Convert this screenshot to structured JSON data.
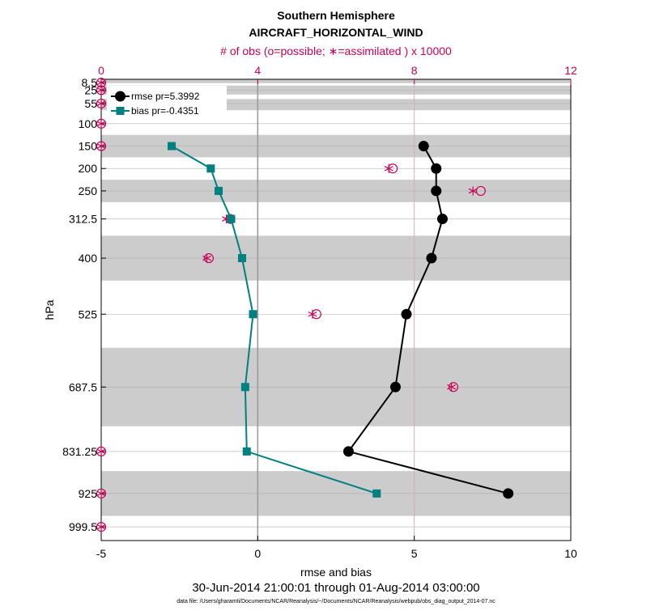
{
  "chart_data": {
    "type": "line",
    "title": "Southern Hemisphere",
    "subtitle": "AIRCRAFT_HORIZONTAL_WIND",
    "top_axis_label": "# of obs (o=possible; ∗=assimilated ) x 10000",
    "xlabel": "rmse and bias",
    "ylabel": "hPa",
    "date_range": "30-Jun-2014 21:00:01 through 01-Aug-2014 03:00:00",
    "data_file": "data file: /Users/gharamti/Documents/NCAR/Reanalysis/~/Documents/NCAR/Reanalysis/webpub/obs_diag_output_2014-07.nc",
    "xlim": [
      -5,
      10
    ],
    "x_ticks": [
      -5,
      0,
      5,
      10
    ],
    "top_xlim": [
      0,
      12
    ],
    "top_ticks": [
      0,
      4,
      8,
      12
    ],
    "levels": [
      8.5,
      25,
      55,
      100,
      150,
      200,
      250,
      312.5,
      400,
      525,
      687.5,
      831.25,
      925,
      999.5
    ],
    "level_labels": [
      "8.5",
      "25",
      "55",
      "100",
      "150",
      "200",
      "250",
      "312.5",
      "400",
      "525",
      "687.5",
      "831.25",
      "925",
      "999.5"
    ],
    "shaded_layers": [
      [
        0,
        8.5
      ],
      [
        15,
        35
      ],
      [
        45,
        70
      ],
      [
        125,
        175
      ],
      [
        225,
        275
      ],
      [
        350,
        450
      ],
      [
        600,
        775
      ],
      [
        875,
        975
      ]
    ],
    "series": [
      {
        "name": "rmse pr=5.3992",
        "color": "#000000",
        "marker": "circle",
        "levels": [
          150,
          200,
          250,
          312.5,
          400,
          525,
          687.5,
          831.25,
          925
        ],
        "values": [
          5.3,
          5.7,
          5.7,
          5.9,
          5.55,
          4.75,
          4.4,
          2.9,
          8.0
        ]
      },
      {
        "name": "bias pr=-0.4351",
        "color": "#008080",
        "marker": "square",
        "levels": [
          150,
          200,
          250,
          312.5,
          400,
          525,
          687.5,
          831.25,
          925
        ],
        "values": [
          -2.75,
          -1.5,
          -1.25,
          -0.85,
          -0.5,
          -0.15,
          -0.4,
          -0.35,
          3.8
        ]
      }
    ],
    "obs_possible": {
      "color": "#cc0055",
      "levels": [
        8.5,
        25,
        55,
        100,
        150,
        200,
        250,
        312.5,
        400,
        525,
        687.5,
        831.25,
        925,
        999.5
      ],
      "values": [
        0,
        0,
        0,
        0,
        0,
        7.45,
        9.7,
        3.3,
        2.75,
        5.5,
        9.0,
        0,
        0,
        0
      ]
    },
    "obs_assimilated": {
      "color": "#cc0055",
      "levels": [
        8.5,
        25,
        55,
        100,
        150,
        200,
        250,
        312.5,
        400,
        525,
        687.5,
        831.25,
        925,
        999.5
      ],
      "values": [
        0,
        0,
        0,
        0,
        0,
        7.35,
        9.5,
        3.2,
        2.7,
        5.4,
        8.95,
        0,
        0,
        0
      ]
    }
  }
}
